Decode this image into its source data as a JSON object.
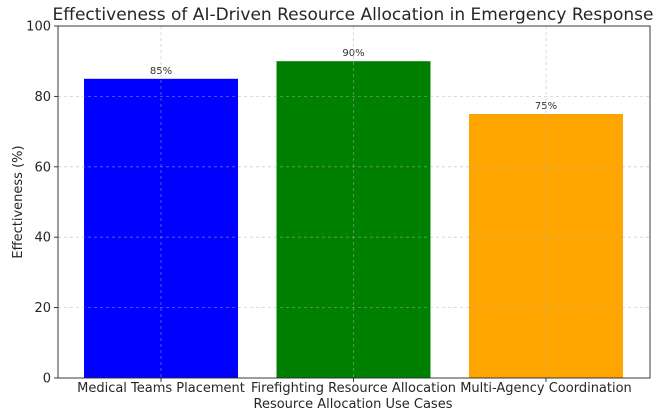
{
  "chart_data": {
    "type": "bar",
    "title": "Effectiveness of AI-Driven Resource Allocation in Emergency Response",
    "xlabel": "Resource Allocation Use Cases",
    "ylabel": "Effectiveness (%)",
    "ylim": [
      0,
      100
    ],
    "yticks": [
      "0",
      "20",
      "40",
      "60",
      "80",
      "100"
    ],
    "grid": true,
    "categories": [
      "Medical Teams Placement",
      "Firefighting Resource Allocation",
      "Multi-Agency Coordination"
    ],
    "values": [
      85,
      90,
      75
    ],
    "data_labels": [
      "85%",
      "90%",
      "75%"
    ],
    "colors": [
      "#0000ff",
      "#008000",
      "#ffa500"
    ]
  }
}
